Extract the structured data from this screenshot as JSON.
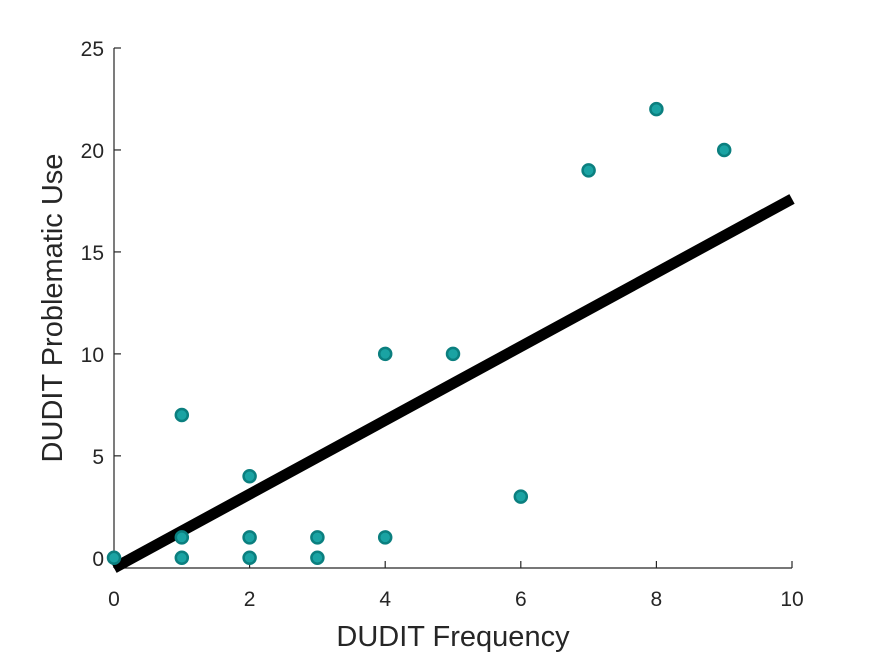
{
  "chart_data": {
    "type": "scatter",
    "title": "",
    "xlabel": "DUDIT Frequency",
    "ylabel": "DUDIT Problematic Use",
    "xlim": [
      0,
      10
    ],
    "ylim": [
      -0.5,
      25
    ],
    "xticks": [
      0,
      2,
      4,
      6,
      8,
      10
    ],
    "yticks": [
      0,
      5,
      10,
      15,
      20,
      25
    ],
    "xtick_labels": [
      "0",
      "2",
      "4",
      "6",
      "8",
      "10"
    ],
    "ytick_labels": [
      "0",
      "5",
      "10",
      "15",
      "20",
      "25"
    ],
    "grid": false,
    "legend": "none",
    "points": [
      {
        "x": 0,
        "y": 0
      },
      {
        "x": 1,
        "y": 0
      },
      {
        "x": 1,
        "y": 1
      },
      {
        "x": 1,
        "y": 7
      },
      {
        "x": 2,
        "y": 0
      },
      {
        "x": 2,
        "y": 1
      },
      {
        "x": 2,
        "y": 4
      },
      {
        "x": 3,
        "y": 0
      },
      {
        "x": 3,
        "y": 1
      },
      {
        "x": 4,
        "y": 1
      },
      {
        "x": 4,
        "y": 10
      },
      {
        "x": 5,
        "y": 10
      },
      {
        "x": 6,
        "y": 3
      },
      {
        "x": 7,
        "y": 19
      },
      {
        "x": 8,
        "y": 22
      },
      {
        "x": 9,
        "y": 20
      }
    ],
    "fit_line": {
      "x": [
        0,
        10
      ],
      "y": [
        -0.5,
        17.6
      ]
    },
    "colors": {
      "marker_fill": "#1aa3a3",
      "marker_edge": "#0b7f7f",
      "fit_line": "#000000",
      "axis": "#262626"
    }
  }
}
